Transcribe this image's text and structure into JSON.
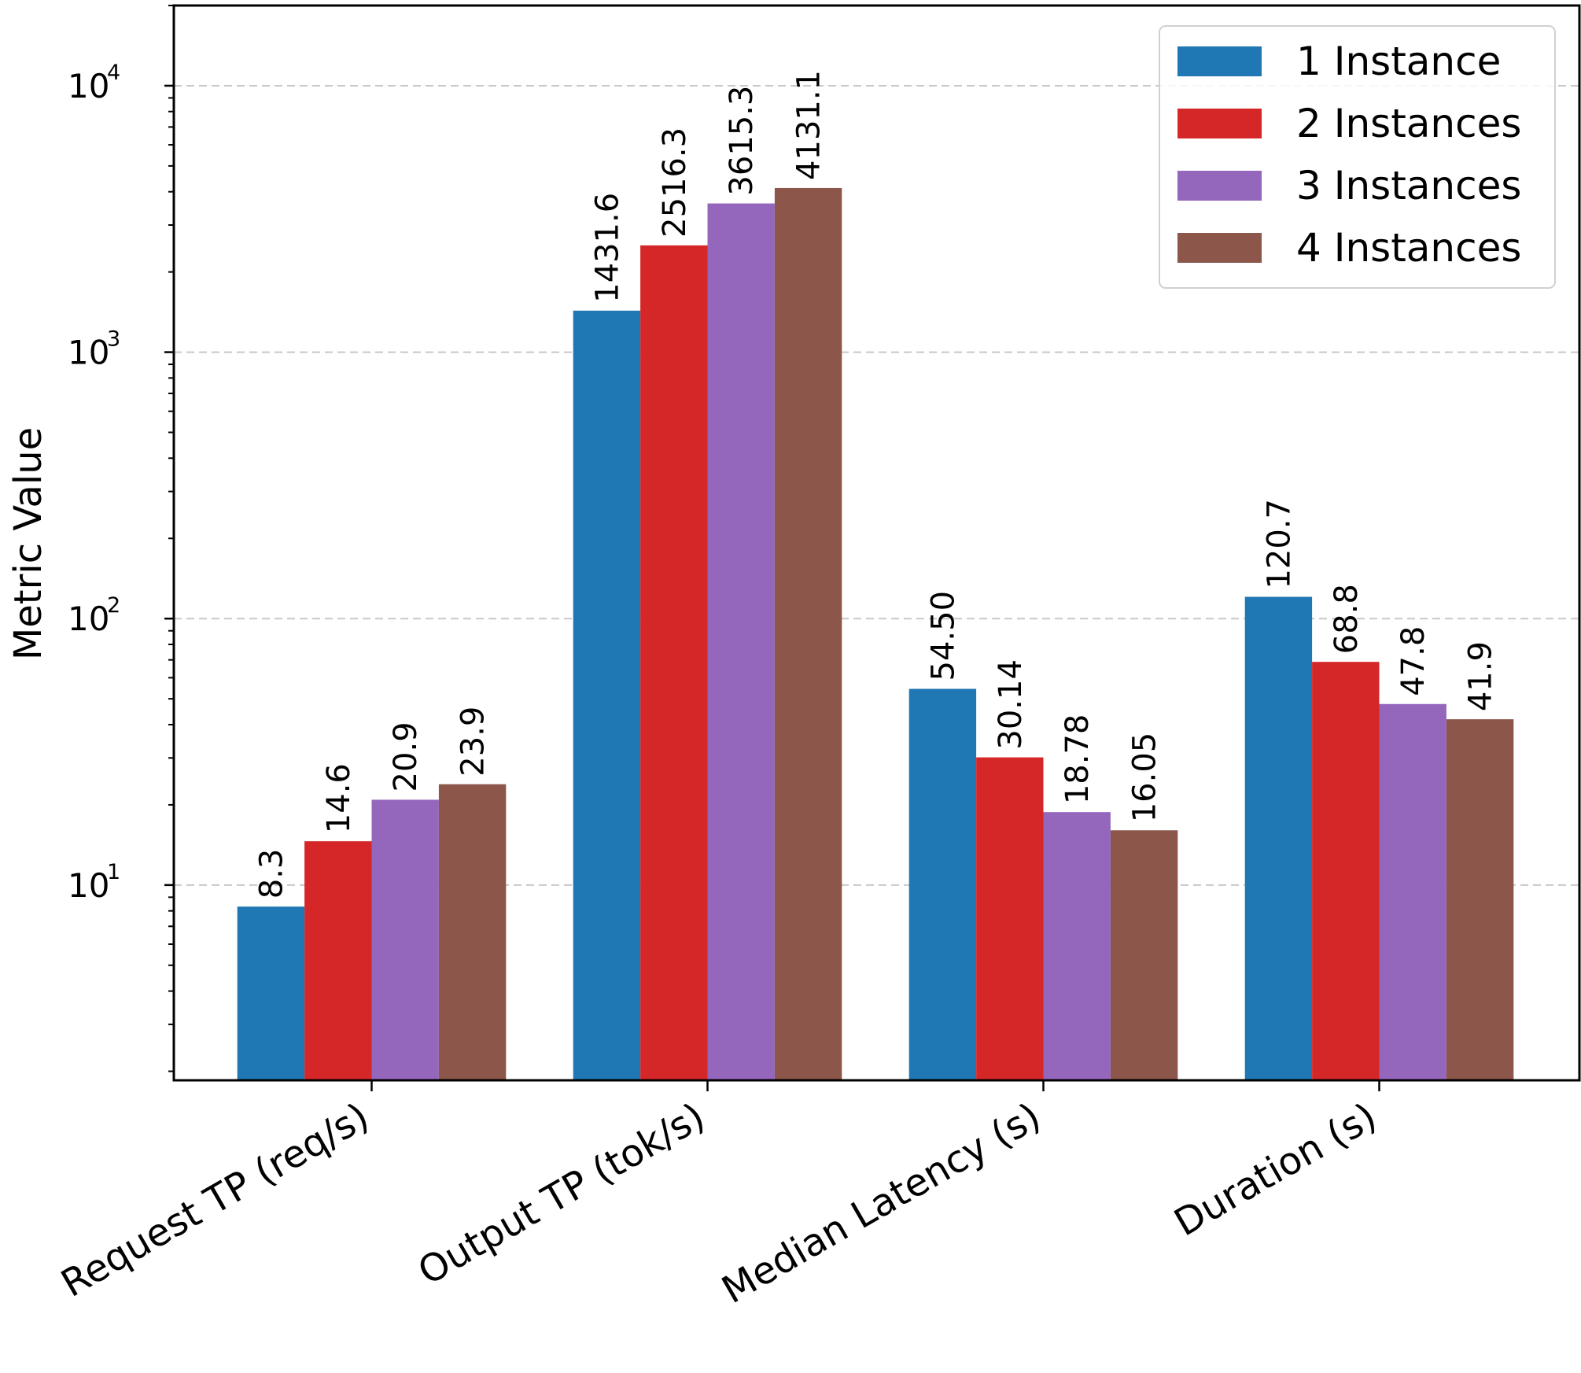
{
  "chart_data": {
    "type": "bar",
    "scale": "log",
    "title": "",
    "xlabel": "",
    "ylabel": "Metric Value",
    "ylim": [
      1.85,
      20000
    ],
    "ytick_values": [
      10,
      100,
      1000,
      10000
    ],
    "ytick_labels": [
      {
        "base": "10",
        "exp": "1"
      },
      {
        "base": "10",
        "exp": "2"
      },
      {
        "base": "10",
        "exp": "3"
      },
      {
        "base": "10",
        "exp": "4"
      }
    ],
    "grid": "y-major-dashed",
    "legend_position": "top-right",
    "categories": [
      "Request TP (req/s)",
      "Output TP (tok/s)",
      "Median Latency (s)",
      "Duration (s)"
    ],
    "series": [
      {
        "name": "1 Instance",
        "color": "#1f77b4",
        "values": [
          8.3,
          1431.6,
          54.5,
          120.7
        ],
        "labels": [
          "8.3",
          "1431.6",
          "54.50",
          "120.7"
        ]
      },
      {
        "name": "2 Instances",
        "color": "#d62728",
        "values": [
          14.6,
          2516.3,
          30.14,
          68.8
        ],
        "labels": [
          "14.6",
          "2516.3",
          "30.14",
          "68.8"
        ]
      },
      {
        "name": "3 Instances",
        "color": "#9467bd",
        "values": [
          20.9,
          3615.3,
          18.78,
          47.8
        ],
        "labels": [
          "20.9",
          "3615.3",
          "18.78",
          "47.8"
        ]
      },
      {
        "name": "4 Instances",
        "color": "#8c564b",
        "values": [
          23.9,
          4131.1,
          16.05,
          41.9
        ],
        "labels": [
          "23.9",
          "4131.1",
          "16.05",
          "41.9"
        ]
      }
    ]
  }
}
